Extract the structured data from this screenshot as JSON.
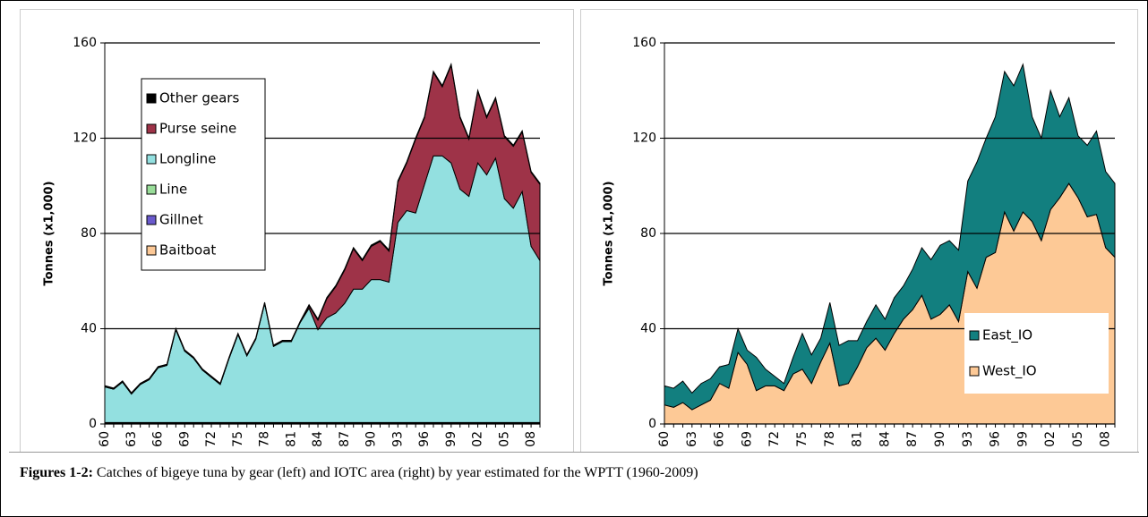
{
  "chart_data": [
    {
      "type": "area",
      "ylabel": "Tonnes (x1,000)",
      "ylim": [
        0,
        160
      ],
      "yticks": [
        0,
        40,
        80,
        120,
        160
      ],
      "grid": true,
      "legend": "upper left",
      "categories": [
        "60",
        null,
        null,
        "63",
        null,
        null,
        "66",
        null,
        null,
        "69",
        null,
        null,
        "72",
        null,
        null,
        "75",
        null,
        null,
        "78",
        null,
        null,
        "81",
        null,
        null,
        "84",
        null,
        null,
        "87",
        null,
        null,
        "90",
        null,
        null,
        "93",
        null,
        null,
        "96",
        null,
        null,
        "99",
        null,
        null,
        "02",
        null,
        null,
        "05",
        null,
        null,
        "08",
        null
      ],
      "series": [
        {
          "name": "Baitboat",
          "color": "#fcc896",
          "values": [
            0.3,
            0.3,
            0.3,
            0.3,
            0.3,
            0.3,
            0.3,
            0.3,
            0.3,
            0.3,
            0.3,
            0.3,
            0.3,
            0.3,
            0.3,
            0.3,
            0.3,
            0.3,
            0.3,
            0.3,
            0.3,
            0.3,
            0.3,
            0.3,
            0.3,
            0.3,
            0.3,
            0.3,
            0.3,
            0.3,
            0.3,
            0.3,
            0.3,
            0.3,
            0.3,
            0.3,
            0.3,
            0.3,
            0.3,
            0.3,
            0.3,
            0.3,
            0.3,
            0.3,
            0.3,
            0.3,
            0.3,
            0.3,
            0.3,
            0.3
          ]
        },
        {
          "name": "Gillnet",
          "color": "#6a5acd",
          "values": [
            0.2,
            0.2,
            0.2,
            0.2,
            0.2,
            0.2,
            0.2,
            0.2,
            0.2,
            0.2,
            0.2,
            0.2,
            0.2,
            0.2,
            0.2,
            0.2,
            0.2,
            0.2,
            0.2,
            0.2,
            0.2,
            0.2,
            0.2,
            0.2,
            0.2,
            0.2,
            0.2,
            0.2,
            0.2,
            0.2,
            0.2,
            0.2,
            0.2,
            0.2,
            0.2,
            0.2,
            0.2,
            0.2,
            0.2,
            0.2,
            0.2,
            0.2,
            0.2,
            0.2,
            0.2,
            0.2,
            0.2,
            0.2,
            0.2,
            0.2
          ]
        },
        {
          "name": "Line",
          "color": "#99dd99",
          "values": [
            0.1,
            0.1,
            0.1,
            0.1,
            0.1,
            0.1,
            0.1,
            0.1,
            0.1,
            0.1,
            0.1,
            0.1,
            0.1,
            0.1,
            0.1,
            0.1,
            0.1,
            0.1,
            0.1,
            0.1,
            0.1,
            0.1,
            0.1,
            0.1,
            0.1,
            0.1,
            0.1,
            0.1,
            0.1,
            0.1,
            0.1,
            0.1,
            0.1,
            0.1,
            0.1,
            0.1,
            0.1,
            0.1,
            0.1,
            0.1,
            0.1,
            0.1,
            0.1,
            0.1,
            0.1,
            0.1,
            0.1,
            0.1,
            0.1,
            0.1
          ]
        },
        {
          "name": "Longline",
          "color": "#93e0e0",
          "values": [
            15,
            14,
            17,
            12,
            16,
            18,
            23,
            24,
            39,
            30,
            27,
            22,
            19,
            16,
            27,
            37,
            28,
            35,
            50,
            32,
            34,
            34,
            42,
            48,
            39,
            44,
            46,
            50,
            56,
            56,
            60,
            60,
            59,
            84,
            89,
            88,
            100,
            112,
            112,
            109,
            98,
            95,
            109,
            104,
            111,
            94,
            90,
            97,
            74,
            68
          ]
        },
        {
          "name": "Purse seine",
          "color": "#9e3348",
          "values": [
            0,
            0,
            0,
            0,
            0,
            0,
            0,
            0,
            0,
            0,
            0,
            0,
            0,
            0,
            0,
            0,
            0,
            0,
            0,
            0,
            0,
            0,
            0,
            1,
            4,
            8,
            11,
            14,
            17,
            12,
            14,
            16,
            13,
            17,
            20,
            31,
            28,
            35,
            29,
            41,
            30,
            24,
            30,
            24,
            25,
            26,
            26,
            25,
            31,
            32
          ]
        },
        {
          "name": "Other gears",
          "color": "#000000",
          "values": [
            0.5,
            0.5,
            0.5,
            0.5,
            0.5,
            0.5,
            0.5,
            0.5,
            0.5,
            0.5,
            0.5,
            0.5,
            0.5,
            0.5,
            0.5,
            0.5,
            0.5,
            0.5,
            0.5,
            0.5,
            0.5,
            0.5,
            0.5,
            0.5,
            0.5,
            0.5,
            0.5,
            0.5,
            0.5,
            0.5,
            0.5,
            0.5,
            0.5,
            0.5,
            0.5,
            0.5,
            0.5,
            0.5,
            0.5,
            0.5,
            0.5,
            0.5,
            0.5,
            0.5,
            0.5,
            0.5,
            0.5,
            0.5,
            0.5,
            0.5
          ]
        }
      ]
    },
    {
      "type": "area",
      "ylabel": "Tonnes (x1,000)",
      "ylim": [
        0,
        160
      ],
      "yticks": [
        0,
        40,
        80,
        120,
        160
      ],
      "grid": true,
      "legend": "lower right",
      "categories": [
        "60",
        null,
        null,
        "63",
        null,
        null,
        "66",
        null,
        null,
        "69",
        null,
        null,
        "72",
        null,
        null,
        "75",
        null,
        null,
        "78",
        null,
        null,
        "81",
        null,
        null,
        "84",
        null,
        null,
        "87",
        null,
        null,
        "90",
        null,
        null,
        "93",
        null,
        null,
        "96",
        null,
        null,
        "99",
        null,
        null,
        "02",
        null,
        null,
        "05",
        null,
        null,
        "08",
        null
      ],
      "series": [
        {
          "name": "West_IO",
          "color": "#fdc996",
          "values": [
            8,
            7,
            9,
            6,
            8,
            10,
            17,
            15,
            30,
            25,
            14,
            16,
            16,
            14,
            21,
            23,
            17,
            26,
            34,
            16,
            17,
            24,
            32,
            36,
            31,
            38,
            44,
            48,
            54,
            44,
            46,
            50,
            43,
            64,
            57,
            70,
            72,
            89,
            81,
            89,
            85,
            77,
            90,
            95,
            101,
            95,
            87,
            88,
            74,
            70
          ]
        },
        {
          "name": "East_IO",
          "color": "#127f7f",
          "values": [
            8,
            8,
            9,
            7,
            9,
            9,
            7,
            10,
            10,
            6,
            14,
            7,
            4,
            3,
            7,
            15,
            12,
            10,
            17,
            17,
            18,
            11,
            11,
            14,
            13,
            15,
            14,
            17,
            20,
            25,
            29,
            27,
            30,
            38,
            53,
            50,
            57,
            59,
            61,
            62,
            44,
            43,
            50,
            34,
            36,
            26,
            30,
            35,
            32,
            31
          ]
        }
      ]
    }
  ],
  "caption": {
    "label": "Figures 1-2:",
    "text": "Catches of bigeye tuna by gear (left) and IOTC area (right) by year estimated for the WPTT (1960-2009)"
  }
}
